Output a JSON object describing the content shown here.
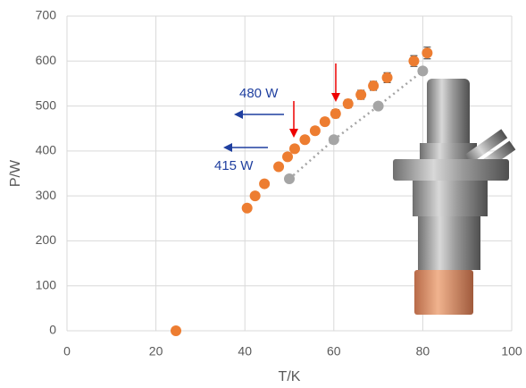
{
  "chart_data": {
    "type": "scatter",
    "x_label": "T/K",
    "y_label": "P/W",
    "xlim": [
      0,
      100
    ],
    "xticks": [
      0,
      20,
      40,
      60,
      80,
      100
    ],
    "ylim": [
      0,
      700
    ],
    "yticks": [
      0,
      100,
      200,
      300,
      400,
      500,
      600,
      700
    ],
    "grid": true,
    "series": [
      {
        "color": "#ed7d31",
        "x": [
          24.5,
          40.5,
          42.3,
          44.4,
          47.6,
          49.6,
          51.2,
          53.5,
          55.8,
          58.0,
          60.4,
          63.2,
          66.1,
          68.9,
          72.0,
          78.0,
          81.0
        ],
        "values": [
          0,
          273,
          300,
          327,
          365,
          387,
          405,
          425,
          445,
          465,
          483,
          505,
          525,
          545,
          563,
          600,
          618
        ],
        "errors": [
          0,
          4,
          4,
          5,
          6,
          6,
          7,
          7,
          8,
          8,
          9,
          9,
          10,
          10,
          11,
          12,
          13
        ]
      },
      {
        "color": "#a5a5a5",
        "x": [
          50,
          60,
          70,
          80
        ],
        "values": [
          338,
          425,
          500,
          578
        ]
      }
    ],
    "annotations": [
      "480 W",
      "415 W"
    ]
  }
}
